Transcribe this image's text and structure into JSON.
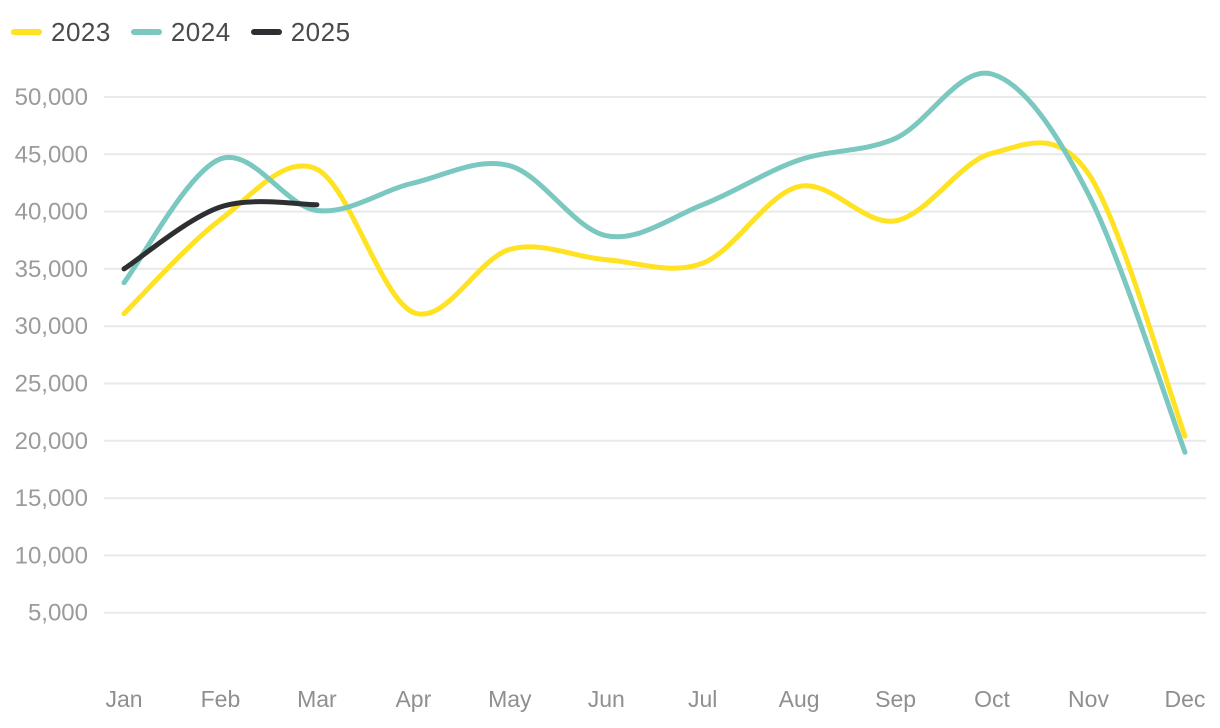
{
  "chart_data": {
    "type": "line",
    "title": "",
    "xlabel": "",
    "ylabel": "",
    "x": [
      "Jan",
      "Feb",
      "Mar",
      "Apr",
      "May",
      "Jun",
      "Jul",
      "Aug",
      "Sep",
      "Oct",
      "Nov",
      "Dec"
    ],
    "series": [
      {
        "name": "2023",
        "color": "#FFE222",
        "values": [
          31100,
          39300,
          43700,
          31200,
          36700,
          35800,
          35500,
          42200,
          39200,
          45100,
          43300,
          20400
        ]
      },
      {
        "name": "2024",
        "color": "#7AC8C0",
        "values": [
          33800,
          44600,
          40100,
          42500,
          44000,
          37900,
          40600,
          44500,
          46400,
          52000,
          41500,
          19000
        ]
      },
      {
        "name": "2025",
        "color": "#2E2F32",
        "values": [
          35000,
          40400,
          40600,
          null,
          null,
          null,
          null,
          null,
          null,
          null,
          null,
          null
        ]
      }
    ],
    "y_ticks": [
      50000,
      45000,
      40000,
      35000,
      30000,
      25000,
      20000,
      15000,
      10000,
      5000
    ],
    "y_tick_labels": [
      "50,000",
      "45,000",
      "40,000",
      "35,000",
      "30,000",
      "25,000",
      "20,000",
      "15,000",
      "10,000",
      "5,000"
    ],
    "ylim": [
      0,
      52500
    ],
    "grid": "horizontal",
    "legend_position": "top-left",
    "curve": "smooth"
  },
  "colors": {
    "background": "#FFFFFF",
    "gridline": "#E9E9E9",
    "axis_label": "#9B9B9B",
    "legend_label": "#4A4A4A"
  }
}
